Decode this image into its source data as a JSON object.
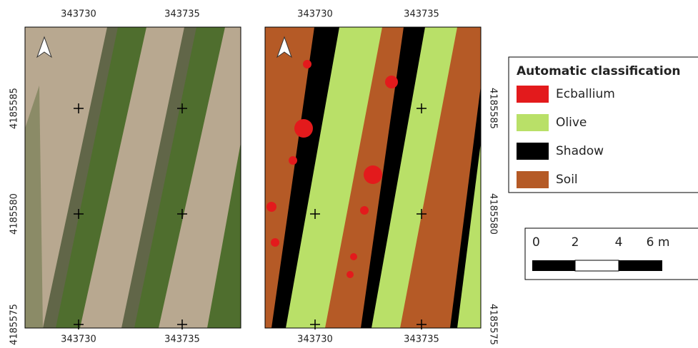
{
  "grid": {
    "eastings": [
      "343730",
      "343735"
    ],
    "northings": [
      "4185585",
      "4185580",
      "4185575"
    ]
  },
  "legend": {
    "title": "Automatic classification",
    "items": [
      {
        "label": "Ecballium",
        "color": "#e31a1c"
      },
      {
        "label": "Olive",
        "color": "#b9e068"
      },
      {
        "label": "Shadow",
        "color": "#000000"
      },
      {
        "label": "Soil",
        "color": "#b55a26"
      }
    ]
  },
  "scale_bar": {
    "labels": [
      "0",
      "2",
      "4",
      "6 m"
    ]
  }
}
